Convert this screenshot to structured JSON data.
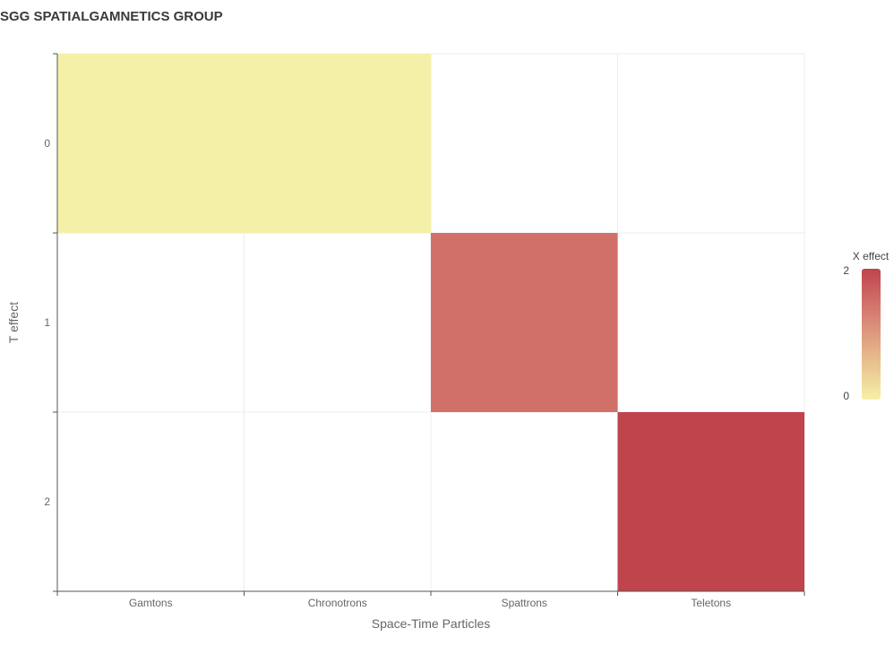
{
  "title": "SGG SPATIALGAMNETICS GROUP",
  "chart_data": {
    "type": "heatmap",
    "title": "SGG SPATIALGAMNETICS GROUP",
    "xlabel": "Space-Time Particles",
    "ylabel": "T effect",
    "x_categories": [
      "Gamtons",
      "Chronotrons",
      "Spattrons",
      "Teletons"
    ],
    "y_categories": [
      "0",
      "1",
      "2"
    ],
    "cells": [
      {
        "x": "Gamtons",
        "y": "0",
        "value": 0
      },
      {
        "x": "Chronotrons",
        "y": "0",
        "value": 0
      },
      {
        "x": "Spattrons",
        "y": "1",
        "value": 1.5
      },
      {
        "x": "Teletons",
        "y": "2",
        "value": 2
      }
    ],
    "color_scale": {
      "title": "X effect",
      "min": 0,
      "max": 2,
      "min_label": "0",
      "max_label": "2",
      "colors": [
        "#f5f0a8",
        "#e6b88a",
        "#d67e72",
        "#c0444c"
      ]
    },
    "grid": true,
    "legend_position": "right"
  }
}
